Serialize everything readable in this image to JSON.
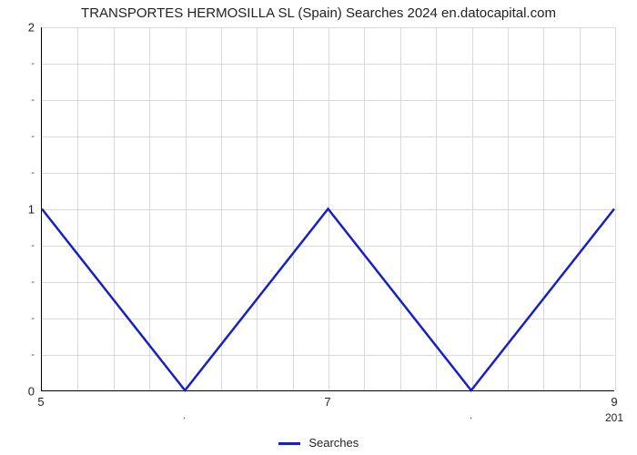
{
  "chart": {
    "type": "line",
    "title": "TRANSPORTES HERMOSILLA SL (Spain) Searches 2024 en.datocapital.com",
    "title_fontsize": 15,
    "x_values": [
      5,
      6,
      7,
      8,
      9
    ],
    "y_values": [
      1,
      0,
      1,
      0,
      1
    ],
    "line_color": "#1720c8",
    "line_width": 2.5,
    "background_color": "#ffffff",
    "grid_color": "#d9d9d9",
    "axis_color": "#000000",
    "xlim": [
      5,
      9
    ],
    "ylim": [
      0,
      2
    ],
    "x_major_ticks": [
      5,
      7,
      9
    ],
    "x_minor_ticks": [
      6,
      8
    ],
    "x_minor_tick_label": ".",
    "y_major_ticks": [
      0,
      1,
      2
    ],
    "y_minor_ticks_per_interval": 4,
    "y_minor_tick_label": "-",
    "x_grid_count": 16,
    "y_grid_minor_lines": 8,
    "tick_fontsize": 13,
    "minor_tick_fontsize": 10,
    "x_axis_far_label": "201",
    "legend": {
      "label": "Searches",
      "color": "#1720c8",
      "fontsize": 13,
      "position": "bottom-center"
    }
  }
}
